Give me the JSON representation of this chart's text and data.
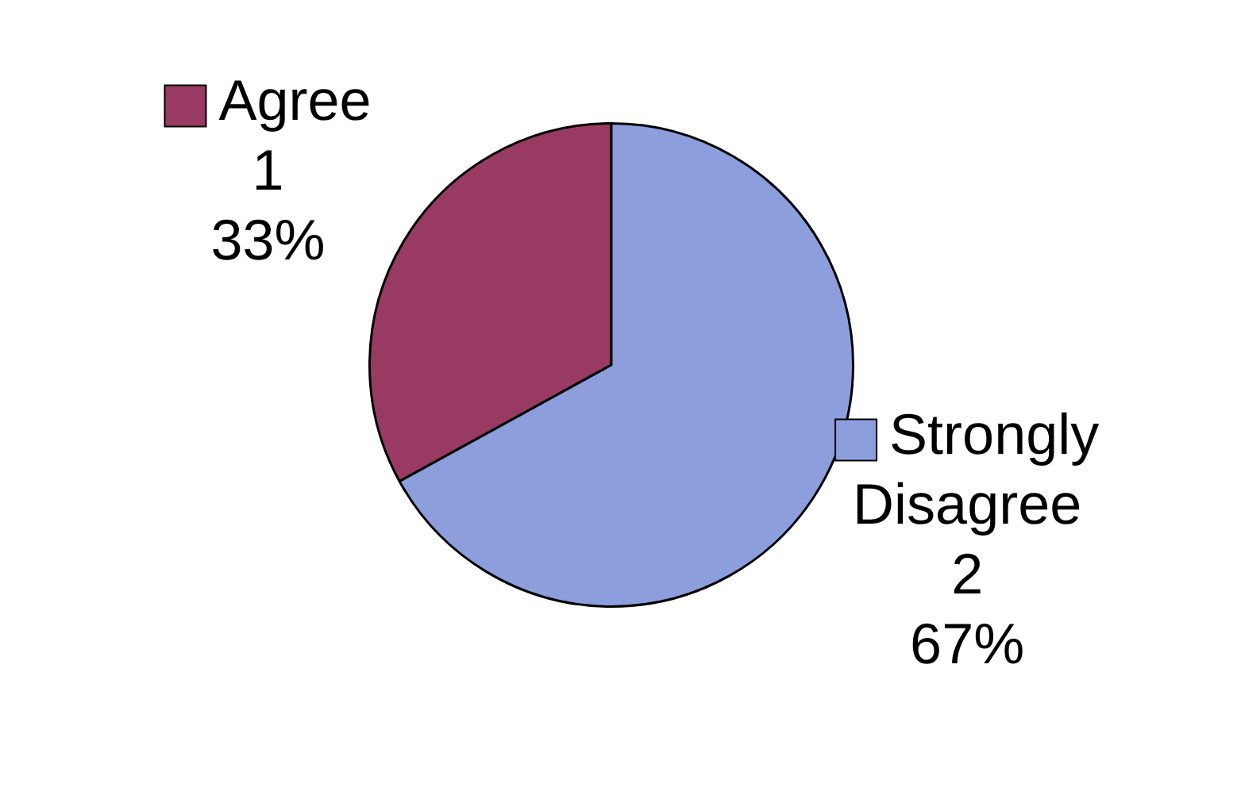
{
  "chart_data": {
    "type": "pie",
    "categories": [
      "Agree",
      "Strongly Disagree"
    ],
    "values": [
      33,
      67
    ],
    "value_labels": [
      "1\n33%",
      "2\n67%"
    ],
    "colors": [
      "#993a62",
      "#8c9edc"
    ],
    "legend": "top left"
  }
}
